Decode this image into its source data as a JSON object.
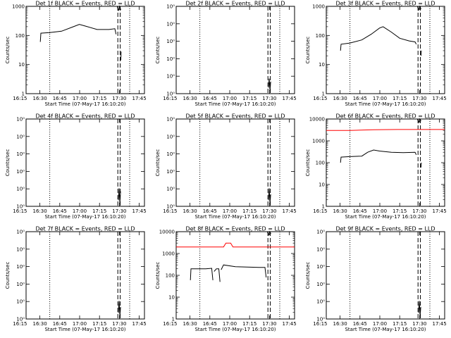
{
  "colors": {
    "events": "#000000",
    "lld": "#ff0000",
    "background": "#ffffff"
  },
  "x_tick_labels": [
    "16:15",
    "16:30",
    "16:45",
    "17:00",
    "17:15",
    "17:30",
    "17:45"
  ],
  "x_label": "Start Time (07-May-17 16:10:20)",
  "y_label": "Counts/sec",
  "chart_data": [
    {
      "type": "line",
      "title": "Det 1f BLACK = Events, RED = LLD",
      "xlabel": "Start Time (07-May-17 16:10:20)",
      "ylabel": "Counts/sec",
      "x_unit": "minutes after 16:10:20",
      "xlim": [
        0,
        100
      ],
      "ylim": [
        1,
        1000
      ],
      "y_scale": "log",
      "y_tick_labels": [
        "1",
        "10",
        "100",
        "1000"
      ],
      "vlines_dotted": [
        20.0,
        87.5
      ],
      "vlines_dashed": [
        77.5,
        79.5
      ],
      "series": [
        {
          "color": "black",
          "points": [
            [
              12,
              60
            ],
            [
              12.5,
              120
            ],
            [
              20,
              125
            ],
            [
              30,
              140
            ],
            [
              40,
              200
            ],
            [
              45,
              240
            ],
            [
              50,
              210
            ],
            [
              60,
              160
            ],
            [
              70,
              160
            ],
            [
              75,
              170
            ],
            [
              76,
              110
            ]
          ]
        },
        {
          "color": "black",
          "points": [
            [
              77,
              1000
            ],
            [
              78,
              700
            ],
            [
              79,
              1000
            ],
            [
              80,
              750
            ]
          ]
        },
        {
          "color": "black",
          "points": [
            [
              80,
              14
            ],
            [
              80.3,
              28
            ]
          ]
        }
      ]
    },
    {
      "type": "line",
      "title": "Det 2f BLACK = Events, RED = LLD",
      "xlabel": "Start Time (07-May-17 16:10:20)",
      "ylabel": "Counts/sec",
      "x_unit": "minutes after 16:10:20",
      "xlim": [
        0,
        100
      ],
      "ylim": [
        0.9,
        1.055
      ],
      "y_scale": "log",
      "y_tick_labels": [
        "10⁰",
        "10⁰",
        "10⁰",
        "10⁰",
        "10⁰",
        "10⁰"
      ],
      "vlines_dotted": [
        20.0,
        87.5
      ],
      "vlines_dashed": [
        77.5,
        79.5
      ],
      "series": [
        {
          "color": "black",
          "points": [
            [
              78,
              0.91
            ],
            [
              78.6,
              0.925
            ],
            [
              79.2,
              0.905
            ],
            [
              79.8,
              0.92
            ]
          ]
        }
      ]
    },
    {
      "type": "line",
      "title": "Det 3f BLACK = Events, RED = LLD",
      "xlabel": "Start Time (07-May-17 16:10:20)",
      "ylabel": "Counts/sec",
      "x_unit": "minutes after 16:10:20",
      "xlim": [
        0,
        100
      ],
      "ylim": [
        1,
        1000
      ],
      "y_scale": "log",
      "y_tick_labels": [
        "1",
        "10",
        "100",
        "1000"
      ],
      "vlines_dotted": [
        20.0,
        87.5
      ],
      "vlines_dashed": [
        77.5,
        79.5
      ],
      "series": [
        {
          "color": "black",
          "points": [
            [
              12,
              30
            ],
            [
              12.5,
              50
            ],
            [
              20,
              55
            ],
            [
              30,
              70
            ],
            [
              38,
              110
            ],
            [
              45,
              180
            ],
            [
              48,
              200
            ],
            [
              55,
              130
            ],
            [
              62,
              80
            ],
            [
              70,
              65
            ],
            [
              75,
              60
            ],
            [
              76,
              50
            ]
          ]
        },
        {
          "color": "black",
          "points": [
            [
              77,
              1000
            ],
            [
              78,
              750
            ],
            [
              79,
              1000
            ],
            [
              80,
              800
            ]
          ]
        },
        {
          "color": "black",
          "points": [
            [
              80,
              20
            ],
            [
              80.3,
              30
            ]
          ]
        }
      ]
    },
    {
      "type": "line",
      "title": "Det 4f BLACK = Events, RED = LLD",
      "xlabel": "Start Time (07-May-17 16:10:20)",
      "ylabel": "Counts/sec",
      "x_unit": "minutes after 16:10:20",
      "xlim": [
        0,
        100
      ],
      "ylim": [
        0.9,
        1.055
      ],
      "y_scale": "log",
      "y_tick_labels": [
        "10⁰",
        "10⁰",
        "10⁰",
        "10⁰",
        "10⁰",
        "10⁰"
      ],
      "vlines_dotted": [
        20.0,
        87.5
      ],
      "vlines_dashed": [
        77.5,
        79.5
      ],
      "series": [
        {
          "color": "black",
          "points": [
            [
              78,
              0.91
            ],
            [
              78.6,
              0.93
            ],
            [
              79.2,
              0.905
            ],
            [
              79.8,
              0.925
            ]
          ]
        }
      ]
    },
    {
      "type": "line",
      "title": "Det 5f BLACK = Events, RED = LLD",
      "xlabel": "Start Time (07-May-17 16:10:20)",
      "ylabel": "Counts/sec",
      "x_unit": "minutes after 16:10:20",
      "xlim": [
        0,
        100
      ],
      "ylim": [
        0.9,
        1.055
      ],
      "y_scale": "log",
      "y_tick_labels": [
        "10⁰",
        "10⁰",
        "10⁰",
        "10⁰",
        "10⁰",
        "10⁰"
      ],
      "vlines_dotted": [
        20.0,
        87.5
      ],
      "vlines_dashed": [
        77.5,
        79.5
      ],
      "series": [
        {
          "color": "black",
          "points": [
            [
              78,
              0.91
            ],
            [
              78.6,
              0.93
            ],
            [
              79.2,
              0.905
            ],
            [
              79.8,
              0.92
            ]
          ]
        }
      ]
    },
    {
      "type": "line",
      "title": "Det 6f BLACK = Events, RED = LLD",
      "xlabel": "Start Time (07-May-17 16:10:20)",
      "ylabel": "Counts/sec",
      "x_unit": "minutes after 16:10:20",
      "xlim": [
        0,
        100
      ],
      "ylim": [
        1,
        10000
      ],
      "y_scale": "log",
      "y_tick_labels": [
        "1",
        "10",
        "100",
        "1000",
        "10000"
      ],
      "vlines_dotted": [
        20.0,
        87.5
      ],
      "vlines_dashed": [
        77.5,
        79.5
      ],
      "series": [
        {
          "color": "red",
          "points": [
            [
              0,
              3000
            ],
            [
              20,
              3000
            ],
            [
              40,
              3200
            ],
            [
              60,
              3300
            ],
            [
              77,
              3300
            ],
            [
              100,
              3300
            ]
          ]
        },
        {
          "color": "black",
          "points": [
            [
              12,
              100
            ],
            [
              12.5,
              180
            ],
            [
              20,
              190
            ],
            [
              30,
              200
            ],
            [
              35,
              300
            ],
            [
              40,
              380
            ],
            [
              45,
              340
            ],
            [
              55,
              300
            ],
            [
              65,
              290
            ],
            [
              75,
              300
            ],
            [
              76,
              230
            ]
          ]
        },
        {
          "color": "black",
          "points": [
            [
              77,
              10000
            ],
            [
              78,
              7000
            ],
            [
              79,
              10000
            ],
            [
              80,
              8000
            ]
          ]
        },
        {
          "color": "black",
          "points": [
            [
              80,
              60
            ],
            [
              80.3,
              100
            ]
          ]
        }
      ]
    },
    {
      "type": "line",
      "title": "Det 7f BLACK = Events, RED = LLD",
      "xlabel": "Start Time (07-May-17 16:10:20)",
      "ylabel": "Counts/sec",
      "x_unit": "minutes after 16:10:20",
      "xlim": [
        0,
        100
      ],
      "ylim": [
        0.9,
        1.055
      ],
      "y_scale": "log",
      "y_tick_labels": [
        "10⁰",
        "10⁰",
        "10⁰",
        "10⁰",
        "10⁰",
        "10⁰"
      ],
      "vlines_dotted": [
        20.0,
        87.5
      ],
      "vlines_dashed": [
        77.5,
        79.5
      ],
      "series": [
        {
          "color": "black",
          "points": [
            [
              78,
              0.91
            ],
            [
              78.6,
              0.93
            ],
            [
              79.2,
              0.905
            ],
            [
              79.8,
              0.92
            ]
          ]
        }
      ]
    },
    {
      "type": "line",
      "title": "Det 8f BLACK = Events, RED = LLD",
      "xlabel": "Start Time (07-May-17 16:10:20)",
      "ylabel": "Counts/sec",
      "x_unit": "minutes after 16:10:20",
      "xlim": [
        0,
        100
      ],
      "ylim": [
        1,
        10000
      ],
      "y_scale": "log",
      "y_tick_labels": [
        "1",
        "10",
        "100",
        "1000",
        "10000"
      ],
      "vlines_dotted": [
        20.0,
        87.5
      ],
      "vlines_dashed": [
        77.5,
        79.5
      ],
      "series": [
        {
          "color": "red",
          "points": [
            [
              0,
              2000
            ],
            [
              40,
              2000
            ],
            [
              42,
              3000
            ],
            [
              46,
              3000
            ],
            [
              48,
              2000
            ],
            [
              100,
              2000
            ]
          ]
        },
        {
          "color": "black",
          "points": [
            [
              12,
              60
            ],
            [
              12.5,
              200
            ],
            [
              25,
              200
            ],
            [
              30,
              210
            ],
            [
              31,
              60
            ]
          ]
        },
        {
          "color": "black",
          "points": [
            [
              32,
              150
            ],
            [
              34,
              200
            ],
            [
              36,
              200
            ],
            [
              37,
              50
            ]
          ]
        },
        {
          "color": "black",
          "points": [
            [
              38,
              180
            ],
            [
              40,
              300
            ],
            [
              50,
              250
            ],
            [
              60,
              240
            ],
            [
              70,
              230
            ],
            [
              75,
              230
            ],
            [
              76,
              80
            ]
          ]
        },
        {
          "color": "black",
          "points": [
            [
              77,
              10000
            ],
            [
              78,
              7000
            ],
            [
              79,
              10000
            ],
            [
              80,
              8000
            ]
          ]
        }
      ]
    },
    {
      "type": "line",
      "title": "Det 9f BLACK = Events, RED = LLD",
      "xlabel": "Start Time (07-May-17 16:10:20)",
      "ylabel": "Counts/sec",
      "x_unit": "minutes after 16:10:20",
      "xlim": [
        0,
        100
      ],
      "ylim": [
        0.9,
        1.055
      ],
      "y_scale": "log",
      "y_tick_labels": [
        "10⁰",
        "10⁰",
        "10⁰",
        "10⁰",
        "10⁰",
        "10⁰"
      ],
      "vlines_dotted": [
        20.0,
        87.5
      ],
      "vlines_dashed": [
        77.5,
        79.5
      ],
      "series": [
        {
          "color": "black",
          "points": [
            [
              78,
              0.91
            ],
            [
              78.6,
              0.93
            ],
            [
              79.2,
              0.905
            ],
            [
              79.8,
              0.92
            ]
          ]
        }
      ]
    }
  ]
}
